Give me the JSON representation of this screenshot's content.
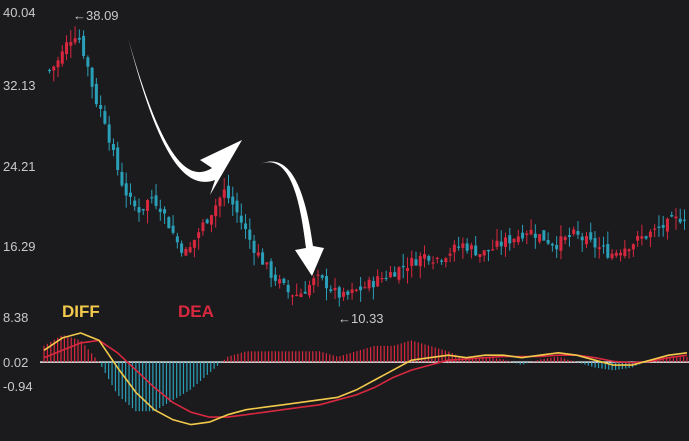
{
  "chart_data": [
    {
      "type": "candlestick",
      "title": "",
      "ylim": [
        8.38,
        40.04
      ],
      "yticks": [
        "40.04",
        "32.13",
        "24.21",
        "16.29",
        "8.38"
      ],
      "grid": false,
      "annotations": {
        "high": {
          "text": "←38.09",
          "value": 38.09
        },
        "low": {
          "text": "←10.33",
          "value": 10.33
        }
      },
      "colors": {
        "up": "#d8283f",
        "down": "#2a9fb8",
        "background": "#1b1b1d"
      },
      "close_path": [
        34,
        35,
        37,
        38,
        35,
        31,
        29,
        25,
        22,
        20,
        19.5,
        21,
        20,
        18,
        16,
        15,
        17,
        18.5,
        20,
        21.5,
        20,
        18,
        16,
        14.5,
        13,
        12,
        11,
        10.8,
        11.5,
        12.5,
        12,
        11,
        10.5,
        11,
        11.5,
        12,
        12.5,
        13,
        13.5,
        14,
        14.5,
        15,
        14.5,
        15,
        15.5,
        16,
        15.5,
        15,
        15.5,
        16,
        16.5,
        17,
        17.5,
        17,
        16.5,
        16,
        16.5,
        17,
        16.5,
        16,
        15.5,
        15,
        15.5,
        16,
        16.5,
        17,
        17.5,
        18,
        18.5,
        19
      ]
    },
    {
      "type": "macd",
      "legend": [
        {
          "name": "DIFF",
          "color": "#f2c94c"
        },
        {
          "name": "DEA",
          "color": "#d8283f"
        }
      ],
      "ylim": [
        -2.8,
        1.4
      ],
      "yticks": [
        "0.02",
        "-0.94"
      ],
      "zero_value": 0.02,
      "histogram_color_up": "#d8283f",
      "histogram_color_down": "#2a9fb8",
      "diff": [
        0.5,
        1.0,
        1.2,
        0.9,
        -0.2,
        -1.2,
        -1.9,
        -2.3,
        -2.5,
        -2.4,
        -2.1,
        -1.9,
        -1.8,
        -1.7,
        -1.6,
        -1.5,
        -1.4,
        -1.1,
        -0.7,
        -0.3,
        0.1,
        0.2,
        0.3,
        0.2,
        0.3,
        0.3,
        0.2,
        0.3,
        0.4,
        0.3,
        0.1,
        -0.1,
        -0.1,
        0.1,
        0.3,
        0.4
      ],
      "dea": [
        0.2,
        0.5,
        0.8,
        0.9,
        0.4,
        -0.3,
        -1.0,
        -1.6,
        -2.0,
        -2.2,
        -2.2,
        -2.1,
        -2.0,
        -1.9,
        -1.8,
        -1.7,
        -1.5,
        -1.3,
        -1.0,
        -0.6,
        -0.3,
        -0.1,
        0.1,
        0.15,
        0.2,
        0.25,
        0.25,
        0.25,
        0.3,
        0.3,
        0.2,
        0.05,
        0.0,
        0.05,
        0.2,
        0.3
      ]
    }
  ]
}
